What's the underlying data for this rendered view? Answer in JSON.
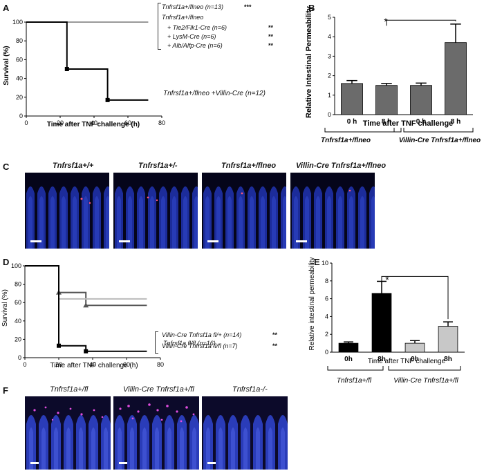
{
  "panels": {
    "A": {
      "letter": "A",
      "ylabel": "Survival (%)",
      "xlabel": "Time after TNF challenge (h)",
      "yticks": [
        "0",
        "20",
        "40",
        "60",
        "80",
        "100"
      ],
      "xticks": [
        "0",
        "20",
        "40",
        "60",
        "80"
      ],
      "legend": [
        {
          "label": "Tnfrsf1a+/flneo (n=13)",
          "stars": "***"
        },
        {
          "label": "Tnfrsf1a+/flneo",
          "stars": ""
        },
        {
          "label": "+ Tie2/Flk1-Cre (n=6)",
          "stars": "**"
        },
        {
          "label": "+ LysM-Cre (n=6)",
          "stars": "**"
        },
        {
          "label": "+ Alb/Alfp-Cre (n=6)",
          "stars": "**"
        }
      ],
      "villin_label": "Tnfrsf1a+/flneo +Villin-Cre (n=12)"
    },
    "B": {
      "letter": "B",
      "ylabel": "Relative Intestinal Permeability",
      "xlabel": "Time after TNF challenge",
      "yticks": [
        "0",
        "1",
        "2",
        "3",
        "4",
        "5"
      ],
      "bar_labels": [
        "0 h",
        "8 h",
        "0 h",
        "8 h"
      ],
      "groups": [
        "Tnfrsf1a+/flneo",
        "Villin-Cre Tnfrsf1a+/flneo"
      ],
      "sig": "*"
    },
    "C": {
      "letter": "C",
      "titles": [
        "Tnfrsf1a+/+",
        "Tnfrsf1a+/-",
        "Tnfrsf1a+/flneo",
        "Villin-Cre Tnfrsf1a+/flneo"
      ]
    },
    "D": {
      "letter": "D",
      "ylabel": "Survival (%)",
      "xlabel": "Time after TNF challenge (h)",
      "yticks": [
        "0",
        "20",
        "40",
        "60",
        "80",
        "100"
      ],
      "xticks": [
        "0",
        "20",
        "40",
        "60",
        "80"
      ],
      "legend": [
        {
          "label": "Villin-Cre Tnfrsf1a fl/+ (n=14)",
          "stars": "**"
        },
        {
          "label": "Villin-Cre Tnfrsf1a fl/fl (n=7)",
          "stars": "**"
        }
      ],
      "flfl_label": "Tnfrsf1a fl/fl (n=16)"
    },
    "E": {
      "letter": "E",
      "ylabel": "Relative intestinal permeability",
      "xlabel": "Time after TNF challenge",
      "yticks": [
        "0",
        "2",
        "4",
        "6",
        "8",
        "10"
      ],
      "bar_labels": [
        "0h",
        "8h",
        "0h",
        "8h"
      ],
      "groups": [
        "Tnfrsf1a+/fl",
        "Villin-Cre Tnfrsf1a+/fl"
      ],
      "sig": "*"
    },
    "F": {
      "letter": "F",
      "titles": [
        "Tnfrsf1a+/fl",
        "Villin-Cre Tnfrsf1a+/fl",
        "Tnfrsf1a-/-"
      ]
    }
  },
  "chart_data": [
    {
      "panel": "A",
      "type": "line",
      "xlabel": "Time after TNF challenge (h)",
      "ylabel": "Survival (%)",
      "xlim": [
        0,
        80
      ],
      "ylim": [
        0,
        100
      ],
      "series": [
        {
          "name": "Tnfrsf1a+/flneo (n=13)",
          "color": "#999999",
          "x": [
            0,
            72
          ],
          "y": [
            100,
            100
          ]
        },
        {
          "name": "Tnfrsf1a+/flneo +Villin-Cre (n=12)",
          "color": "#000000",
          "x": [
            0,
            24,
            24,
            48,
            48,
            72
          ],
          "y": [
            100,
            100,
            50,
            50,
            17,
            17
          ]
        }
      ]
    },
    {
      "panel": "B",
      "type": "bar",
      "categories": [
        "0 h",
        "8 h",
        "0 h",
        "8 h"
      ],
      "values": [
        1.6,
        1.5,
        1.5,
        3.7
      ],
      "errors": [
        0.15,
        0.1,
        0.12,
        0.95
      ],
      "colors": [
        "#6b6b6b",
        "#6b6b6b",
        "#6b6b6b",
        "#6b6b6b"
      ],
      "ylabel": "Relative Intestinal Permeability",
      "xlabel": "Time after TNF challenge",
      "ylim": [
        0,
        5
      ]
    },
    {
      "panel": "D",
      "type": "line",
      "xlabel": "Time after TNF challenge (h)",
      "ylabel": "Survival (%)",
      "xlim": [
        0,
        80
      ],
      "ylim": [
        0,
        100
      ],
      "series": [
        {
          "name": "Villin-Cre Tnfrsf1a fl/+ (n=14)",
          "color": "#555555",
          "x": [
            0,
            20,
            20,
            36,
            36,
            72
          ],
          "y": [
            100,
            100,
            71,
            71,
            57,
            57
          ]
        },
        {
          "name": "Villin-Cre Tnfrsf1a fl/fl (n=7)",
          "color": "#bbbbbb",
          "x": [
            0,
            20,
            20,
            72
          ],
          "y": [
            100,
            100,
            64,
            64
          ]
        },
        {
          "name": "Tnfrsf1a fl/fl (n=16)",
          "color": "#000000",
          "x": [
            0,
            20,
            20,
            36,
            36,
            72
          ],
          "y": [
            100,
            100,
            13,
            13,
            7,
            7
          ]
        }
      ]
    },
    {
      "panel": "E",
      "type": "bar",
      "categories": [
        "0h",
        "8h",
        "0h",
        "8h"
      ],
      "values": [
        1.0,
        6.6,
        1.0,
        2.9
      ],
      "errors": [
        0.15,
        1.35,
        0.3,
        0.5
      ],
      "colors": [
        "#000000",
        "#000000",
        "#c8c8c8",
        "#c8c8c8"
      ],
      "ylabel": "Relative intestinal permeability",
      "xlabel": "Time after TNF challenge",
      "ylim": [
        0,
        10
      ]
    }
  ]
}
